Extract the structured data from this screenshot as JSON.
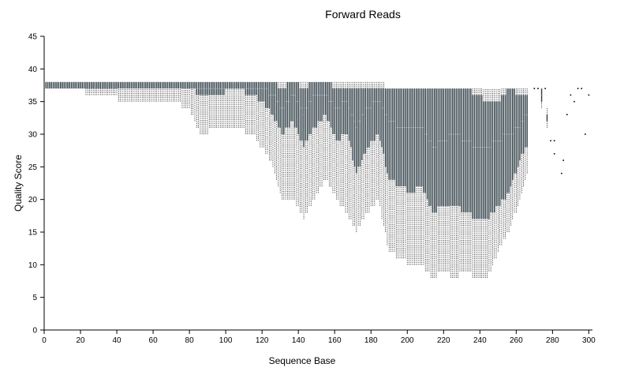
{
  "chart_data": {
    "type": "box",
    "title": "Forward Reads",
    "xlabel": "Sequence Base",
    "ylabel": "Quality Score",
    "xlim": [
      0,
      302
    ],
    "ylim": [
      0,
      45
    ],
    "xticks": [
      0,
      20,
      40,
      60,
      80,
      100,
      120,
      140,
      160,
      180,
      200,
      220,
      240,
      260,
      280,
      300
    ],
    "yticks": [
      0,
      5,
      10,
      15,
      20,
      25,
      30,
      35,
      40,
      45
    ],
    "box_color": "#2f3e46",
    "whisker_color": "#000000",
    "anchors": [
      [
        1,
        37,
        37,
        38,
        38,
        38
      ],
      [
        15,
        37,
        37,
        38,
        38,
        38
      ],
      [
        30,
        36,
        37,
        38,
        38,
        38
      ],
      [
        50,
        35,
        37,
        38,
        38,
        38
      ],
      [
        70,
        35,
        37,
        38,
        38,
        38
      ],
      [
        80,
        34,
        37,
        38,
        38,
        38
      ],
      [
        86,
        30,
        36,
        37,
        38,
        38
      ],
      [
        95,
        31,
        36,
        37,
        38,
        38
      ],
      [
        105,
        31,
        37,
        38,
        38,
        38
      ],
      [
        115,
        30,
        36,
        37,
        38,
        38
      ],
      [
        120,
        28,
        35,
        37,
        38,
        38
      ],
      [
        126,
        25,
        33,
        36,
        38,
        38
      ],
      [
        131,
        20,
        30,
        34,
        37,
        38
      ],
      [
        137,
        20,
        32,
        36,
        38,
        38
      ],
      [
        143,
        17,
        28,
        33,
        37,
        38
      ],
      [
        149,
        20,
        31,
        36,
        38,
        38
      ],
      [
        155,
        23,
        33,
        36,
        38,
        38
      ],
      [
        161,
        20,
        29,
        34,
        37,
        38
      ],
      [
        167,
        18,
        30,
        35,
        37,
        38
      ],
      [
        172,
        15,
        24,
        31,
        37,
        38
      ],
      [
        178,
        18,
        28,
        34,
        37,
        38
      ],
      [
        184,
        20,
        30,
        35,
        37,
        38
      ],
      [
        190,
        12,
        23,
        32,
        37,
        37
      ],
      [
        196,
        11,
        22,
        31,
        37,
        37
      ],
      [
        202,
        10,
        21,
        31,
        37,
        37
      ],
      [
        208,
        10,
        22,
        31,
        37,
        37
      ],
      [
        214,
        8,
        18,
        28,
        37,
        37
      ],
      [
        220,
        9,
        19,
        29,
        37,
        37
      ],
      [
        226,
        8,
        19,
        30,
        37,
        37
      ],
      [
        232,
        9,
        18,
        29,
        37,
        37
      ],
      [
        238,
        8,
        17,
        28,
        36,
        37
      ],
      [
        244,
        8,
        17,
        28,
        35,
        37
      ],
      [
        250,
        12,
        19,
        29,
        35,
        37
      ],
      [
        256,
        15,
        21,
        30,
        37,
        37
      ],
      [
        262,
        20,
        26,
        31,
        36,
        37
      ],
      [
        266,
        24,
        28,
        33,
        36,
        37
      ]
    ],
    "sparse_boxes": [
      [
        274,
        34,
        35,
        36,
        37,
        37
      ],
      [
        277,
        31,
        32,
        33,
        33,
        34
      ]
    ],
    "sparse_points": [
      [
        276,
        37
      ],
      [
        279,
        29
      ],
      [
        281,
        29
      ],
      [
        285,
        24
      ],
      [
        286,
        26
      ],
      [
        281,
        27
      ],
      [
        288,
        33
      ],
      [
        290,
        36
      ],
      [
        292,
        35
      ],
      [
        294,
        37
      ],
      [
        296,
        37
      ],
      [
        298,
        30
      ],
      [
        300,
        36
      ],
      [
        272,
        37
      ],
      [
        270,
        37
      ]
    ]
  }
}
